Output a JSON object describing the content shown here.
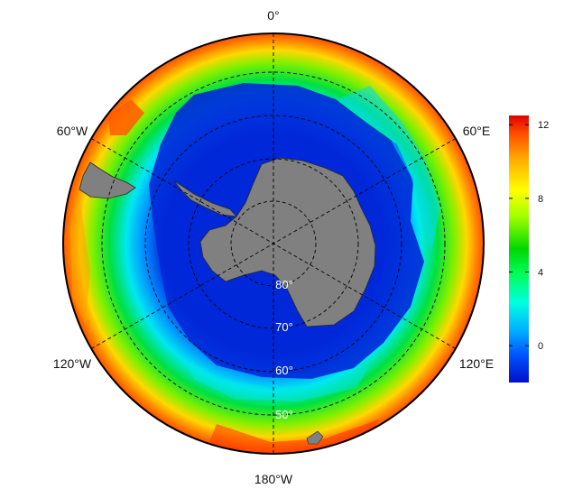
{
  "map": {
    "projection": "south-polar-stereographic",
    "longitude_labels": [
      "0°",
      "60°E",
      "120°E",
      "180°W",
      "120°W",
      "60°W"
    ],
    "latitude_labels": [
      "80°",
      "70°",
      "60°",
      "50°"
    ],
    "land_color": "#808080",
    "graticule_style": "dashed"
  },
  "colorbar": {
    "ticks": [
      "12",
      "8",
      "4",
      "0"
    ],
    "tick_values": [
      12,
      8,
      4,
      0
    ],
    "range": [
      -2,
      12.5
    ],
    "colors": [
      "#0010c8",
      "#0050ff",
      "#00b4ff",
      "#00ffe0",
      "#00ff60",
      "#00d800",
      "#a0ff00",
      "#ffff00",
      "#ffa800",
      "#ff5000",
      "#e00000"
    ]
  }
}
